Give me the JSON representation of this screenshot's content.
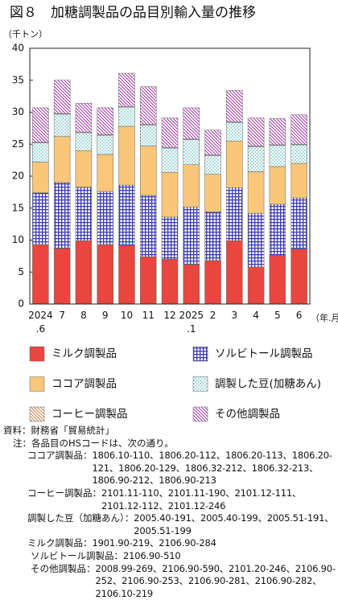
{
  "chart_data": {
    "type": "stacked_bar",
    "title": "図８　加糖調製品の品目別輸入量の推移",
    "y_unit": "（千トン）",
    "x_unit": "（年.月）",
    "categories": [
      "2024\n.6",
      "7",
      "8",
      "9",
      "10",
      "11",
      "12",
      "2025\n.1",
      "2",
      "3",
      "4",
      "5",
      "6"
    ],
    "series": [
      {
        "name": "ミルク調製品",
        "color": "#e8463f",
        "pattern": "solid",
        "values": [
          9.3,
          8.7,
          9.9,
          9.3,
          9.1,
          7.4,
          7.0,
          6.2,
          6.8,
          9.9,
          5.8,
          7.6,
          8.6
        ]
      },
      {
        "name": "ソルビトール調製品",
        "color": "#3b3bb0",
        "pattern": "grid",
        "values": [
          8.1,
          10.3,
          8.4,
          8.3,
          9.5,
          9.6,
          6.6,
          9.0,
          7.6,
          8.3,
          8.4,
          8.0,
          8.0
        ]
      },
      {
        "name": "ココア調製品",
        "color": "#f9c67a",
        "pattern": "solid",
        "values": [
          4.8,
          7.2,
          5.7,
          5.8,
          9.2,
          7.7,
          7.0,
          6.6,
          5.9,
          7.3,
          6.5,
          5.9,
          5.4
        ]
      },
      {
        "name": "調製した豆(加糖あん)",
        "color": "#2aa3a8",
        "pattern": "dots",
        "values": [
          3.0,
          3.5,
          2.8,
          3.0,
          3.0,
          3.3,
          3.8,
          3.9,
          2.9,
          2.9,
          3.9,
          3.3,
          2.9
        ]
      },
      {
        "name": "コーヒー調製品",
        "color": "#c0804a",
        "pattern": "diagonal",
        "values": [
          0.1,
          0.1,
          0.1,
          0.1,
          0.1,
          0.1,
          0.1,
          0.1,
          0.1,
          0.1,
          0.1,
          0.1,
          0.1
        ]
      },
      {
        "name": "その他調製品",
        "color": "#a03aa3",
        "pattern": "diagonal",
        "values": [
          5.4,
          5.2,
          4.5,
          4.2,
          5.2,
          5.9,
          4.6,
          4.9,
          3.9,
          4.9,
          4.4,
          4.1,
          4.6
        ]
      }
    ],
    "ylim": [
      0,
      40
    ],
    "yticks": [
      0,
      5,
      10,
      15,
      20,
      25,
      30,
      35,
      40
    ],
    "grid": false
  },
  "notes": {
    "source": "資料：財務省「貿易統計」",
    "intro": "注：各品目のHSコードは、次の通り。",
    "items": [
      {
        "label": "ココア調製品：",
        "codes": "1806.10-110、1806.20-112、1806.20-113、1806.20-121、1806.20-129、1806.32-212、1806.32-213、1806.90-212、1806.90-213"
      },
      {
        "label": "コーヒー調製品：",
        "codes": "2101.11-110、2101.11-190、2101.12-111、2101.12-112、2101.12-246"
      },
      {
        "label": "調製した豆（加糖あん）：",
        "codes": "2005.40-191、2005.40-199、2005.51-191、2005.51-199"
      },
      {
        "label": "ミルク調製品：",
        "codes": "1901.90-219、2106.90-284"
      },
      {
        "label": "ソルビトール調製品：",
        "codes": "2106.90-510"
      },
      {
        "label": "その他調製品：",
        "codes": "2008.99-269、2106.90-590、2101.20-246、2106.90-252、2106.90-253、2106.90-281、2106.90-282、2106.10-219"
      }
    ]
  }
}
